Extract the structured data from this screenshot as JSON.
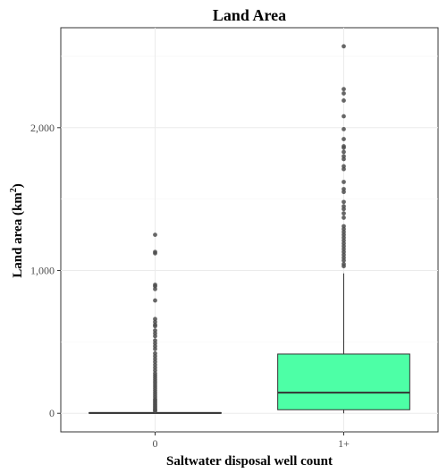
{
  "chart_data": {
    "type": "boxplot",
    "title": "Land Area",
    "xlabel": "Saltwater disposal well count",
    "ylabel": "Land area (km²)",
    "ylabel_text": "Land area (km",
    "ylabel_sup": "2",
    "ylabel_close": ")",
    "categories": [
      "0",
      "1+"
    ],
    "ylim": [
      -130,
      2700
    ],
    "yticks": [
      0,
      1000,
      2000
    ],
    "ytick_labels": [
      "0",
      "1,000",
      "2,000"
    ],
    "grid": true,
    "colors": {
      "box_fill": "#4dffa6",
      "box_line": "#333333",
      "outlier": "#4d4d4d",
      "grid_major": "#ebebeb",
      "grid_minor": "#f5f5f5",
      "panel_border": "#333333"
    },
    "series": [
      {
        "category": "0",
        "q1": 0,
        "median": 2,
        "q3": 5,
        "whisker_low": 0,
        "whisker_high": 10,
        "outliers": [
          1250,
          1130,
          1120,
          900,
          890,
          870,
          790,
          660,
          640,
          620,
          610,
          580,
          560,
          540,
          510,
          490,
          470,
          450,
          420,
          400,
          380,
          360,
          340,
          320,
          300,
          280,
          265,
          250,
          235,
          220,
          205,
          190,
          175,
          160,
          145,
          130,
          115,
          100,
          90,
          80,
          70,
          60,
          50,
          40,
          30,
          22,
          15
        ]
      },
      {
        "category": "1+",
        "q1": 25,
        "median": 145,
        "q3": 415,
        "whisker_low": 0,
        "whisker_high": 980,
        "outliers": [
          2570,
          2270,
          2240,
          2190,
          2080,
          1990,
          1920,
          1870,
          1860,
          1830,
          1800,
          1780,
          1730,
          1710,
          1620,
          1570,
          1550,
          1480,
          1450,
          1430,
          1400,
          1370,
          1310,
          1290,
          1270,
          1250,
          1230,
          1210,
          1190,
          1170,
          1150,
          1130,
          1110,
          1090,
          1070,
          1045,
          1030
        ]
      }
    ]
  }
}
